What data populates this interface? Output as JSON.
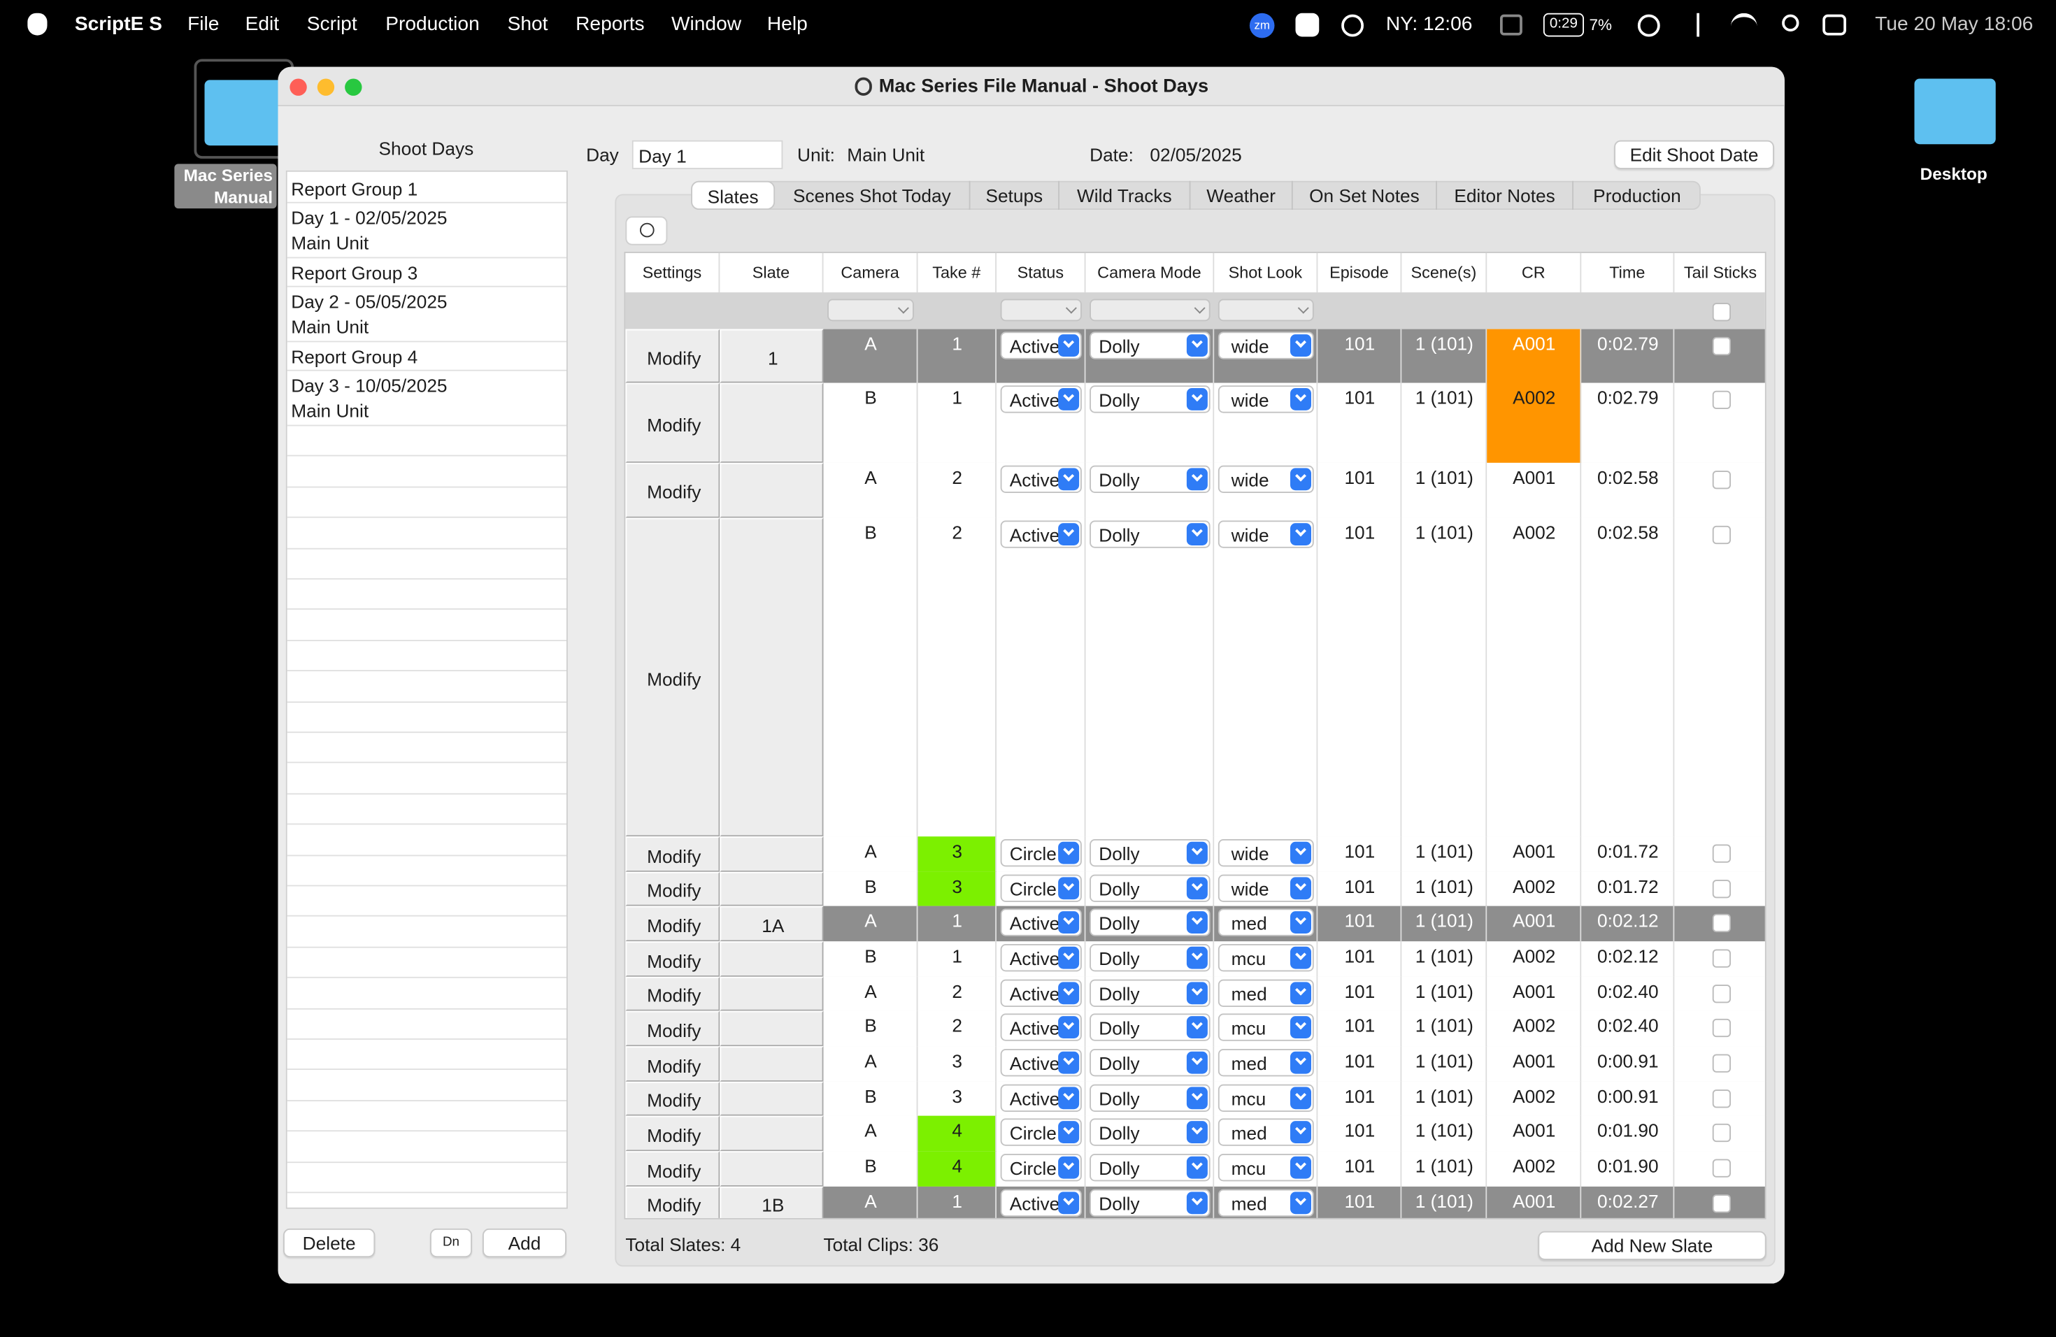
{
  "menubar": {
    "app": "ScriptE S",
    "menus": [
      "File",
      "Edit",
      "Script",
      "Production",
      "Shot",
      "Reports",
      "Window",
      "Help"
    ],
    "status": {
      "zoom": "zm",
      "clock_ny": "NY: 12:06",
      "battery_time": "0:29",
      "battery": "7%",
      "date": "Tue 20 May",
      "time": "18:06"
    }
  },
  "desktop": {
    "icons": [
      {
        "label": "Mac Series Manual"
      },
      {
        "label": "Desktop"
      }
    ]
  },
  "window": {
    "title": "Mac Series File Manual - Shoot Days",
    "sidebar": {
      "title": "Shoot Days",
      "items": [
        {
          "label": "Report Group 1"
        },
        {
          "label": "Day 1 - 02/05/2025",
          "unit": "Main Unit"
        },
        {
          "label": "Report Group 3"
        },
        {
          "label": "Day 2 - 05/05/2025",
          "unit": "Main Unit"
        },
        {
          "label": "Report Group 4"
        },
        {
          "label": "Day 3 - 10/05/2025",
          "unit": "Main Unit"
        }
      ],
      "buttons": {
        "delete": "Delete",
        "down": "Dn",
        "add": "Add"
      }
    },
    "header": {
      "day_label": "Day",
      "day": "Day 1",
      "unit_label": "Unit:",
      "unit": "Main Unit",
      "date_label": "Date:",
      "date": "02/05/2025",
      "edit_button": "Edit Shoot Date"
    },
    "tabs": {
      "items": [
        "Slates",
        "Scenes Shot Today",
        "Setups",
        "Wild Tracks",
        "Weather",
        "On Set Notes",
        "Editor Notes",
        "Production"
      ],
      "selected": 0
    },
    "table": {
      "columns": [
        "Settings",
        "Slate",
        "Camera",
        "Take #",
        "Status",
        "Camera Mode",
        "Shot Look",
        "Episode",
        "Scene(s)",
        "CR",
        "Time",
        "Tail Sticks"
      ],
      "rows": [
        {
          "cells": [
            "Modify",
            "1",
            "A",
            "1",
            "Active",
            "Dolly",
            "wide",
            "101",
            "1 (101)",
            "A001",
            "0:02.79"
          ],
          "selected": true,
          "cr_color": "#ff9500"
        },
        {
          "cells": [
            "Modify",
            null,
            "B",
            "1",
            "Active",
            "Dolly",
            "wide",
            "101",
            "1 (101)",
            "A002",
            "0:02.79"
          ],
          "cr_color": "#ff9500"
        },
        {
          "cells": [
            "Modify",
            null,
            "A",
            "2",
            "Active",
            "Dolly",
            "wide",
            "101",
            "1 (101)",
            "A001",
            "0:02.58"
          ]
        },
        {
          "cells": [
            "Modify",
            null,
            "B",
            "2",
            "Active",
            "Dolly",
            "wide",
            "101",
            "1 (101)",
            "A002",
            "0:02.58"
          ]
        },
        {
          "cells": [
            "Modify",
            null,
            "A",
            "3",
            "Circle",
            "Dolly",
            "wide",
            "101",
            "1 (101)",
            "A001",
            "0:01.72"
          ],
          "take_color": "#7cf000"
        },
        {
          "cells": [
            "Modify",
            null,
            "B",
            "3",
            "Circle",
            "Dolly",
            "wide",
            "101",
            "1 (101)",
            "A002",
            "0:01.72"
          ],
          "take_color": "#7cf000"
        },
        {
          "cells": [
            "Modify",
            "1A",
            "A",
            "1",
            "Active",
            "Dolly",
            "med",
            "101",
            "1 (101)",
            "A001",
            "0:02.12"
          ],
          "selected": true
        },
        {
          "cells": [
            "Modify",
            null,
            "B",
            "1",
            "Active",
            "Dolly",
            "mcu",
            "101",
            "1 (101)",
            "A002",
            "0:02.12"
          ]
        },
        {
          "cells": [
            "Modify",
            null,
            "A",
            "2",
            "Active",
            "Dolly",
            "med",
            "101",
            "1 (101)",
            "A001",
            "0:02.40"
          ]
        },
        {
          "cells": [
            "Modify",
            null,
            "B",
            "2",
            "Active",
            "Dolly",
            "mcu",
            "101",
            "1 (101)",
            "A002",
            "0:02.40"
          ]
        },
        {
          "cells": [
            "Modify",
            null,
            "A",
            "3",
            "Active",
            "Dolly",
            "med",
            "101",
            "1 (101)",
            "A001",
            "0:00.91"
          ]
        },
        {
          "cells": [
            "Modify",
            null,
            "B",
            "3",
            "Active",
            "Dolly",
            "mcu",
            "101",
            "1 (101)",
            "A002",
            "0:00.91"
          ]
        },
        {
          "cells": [
            "Modify",
            null,
            "A",
            "4",
            "Circle",
            "Dolly",
            "med",
            "101",
            "1 (101)",
            "A001",
            "0:01.90"
          ],
          "take_color": "#7cf000"
        },
        {
          "cells": [
            "Modify",
            null,
            "B",
            "4",
            "Circle",
            "Dolly",
            "mcu",
            "101",
            "1 (101)",
            "A002",
            "0:01.90"
          ],
          "take_color": "#7cf000"
        },
        {
          "cells": [
            "Modify",
            "1B",
            "A",
            "1",
            "Active",
            "Dolly",
            "med",
            "101",
            "1 (101)",
            "A001",
            "0:02.27"
          ],
          "selected": true
        }
      ]
    },
    "footer": {
      "total_slates": "Total Slates: 4",
      "total_clips": "Total Clips: 36",
      "add_button": "Add New Slate"
    }
  }
}
